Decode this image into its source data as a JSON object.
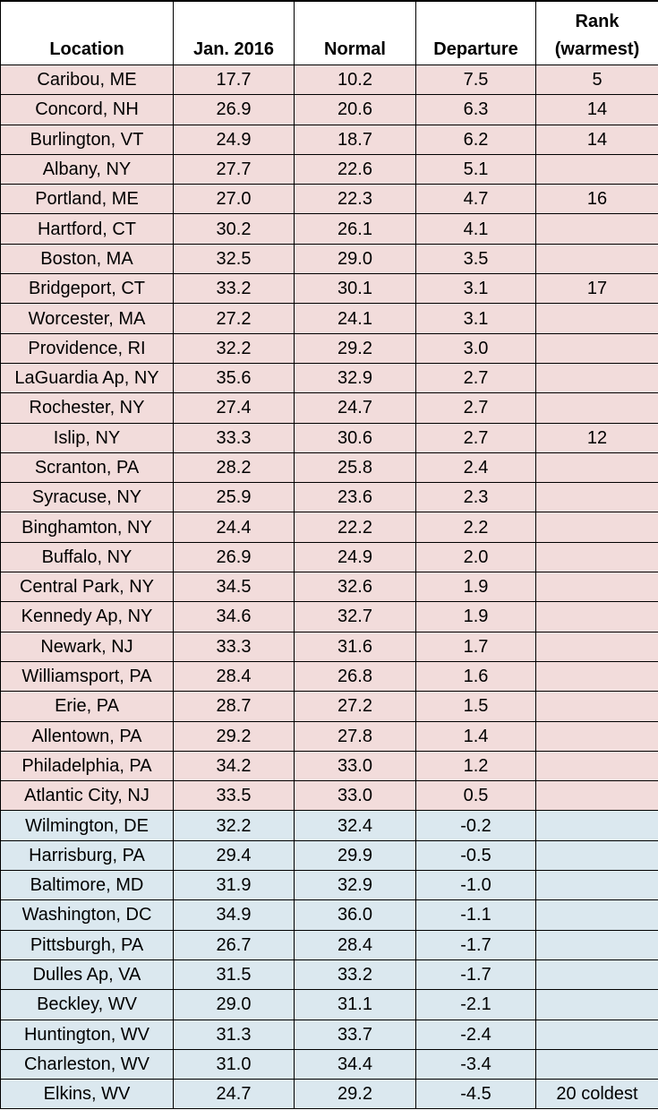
{
  "table": {
    "headers": {
      "location": "Location",
      "jan": "Jan. 2016",
      "normal": "Normal",
      "departure": "Departure",
      "rank_line1": "Rank",
      "rank_line2": "(warmest)"
    },
    "colors": {
      "positive_departure": "#f2dcdb",
      "negative_departure": "#dbe8ef"
    },
    "rows": [
      {
        "location": "Caribou, ME",
        "jan": "17.7",
        "normal": "10.2",
        "departure": "7.5",
        "rank": "5",
        "tone": "warm"
      },
      {
        "location": "Concord, NH",
        "jan": "26.9",
        "normal": "20.6",
        "departure": "6.3",
        "rank": "14",
        "tone": "warm"
      },
      {
        "location": "Burlington, VT",
        "jan": "24.9",
        "normal": "18.7",
        "departure": "6.2",
        "rank": "14",
        "tone": "warm"
      },
      {
        "location": "Albany, NY",
        "jan": "27.7",
        "normal": "22.6",
        "departure": "5.1",
        "rank": "",
        "tone": "warm"
      },
      {
        "location": "Portland, ME",
        "jan": "27.0",
        "normal": "22.3",
        "departure": "4.7",
        "rank": "16",
        "tone": "warm"
      },
      {
        "location": "Hartford, CT",
        "jan": "30.2",
        "normal": "26.1",
        "departure": "4.1",
        "rank": "",
        "tone": "warm"
      },
      {
        "location": "Boston, MA",
        "jan": "32.5",
        "normal": "29.0",
        "departure": "3.5",
        "rank": "",
        "tone": "warm"
      },
      {
        "location": "Bridgeport, CT",
        "jan": "33.2",
        "normal": "30.1",
        "departure": "3.1",
        "rank": "17",
        "tone": "warm"
      },
      {
        "location": "Worcester, MA",
        "jan": "27.2",
        "normal": "24.1",
        "departure": "3.1",
        "rank": "",
        "tone": "warm"
      },
      {
        "location": "Providence, RI",
        "jan": "32.2",
        "normal": "29.2",
        "departure": "3.0",
        "rank": "",
        "tone": "warm"
      },
      {
        "location": "LaGuardia Ap, NY",
        "jan": "35.6",
        "normal": "32.9",
        "departure": "2.7",
        "rank": "",
        "tone": "warm"
      },
      {
        "location": "Rochester, NY",
        "jan": "27.4",
        "normal": "24.7",
        "departure": "2.7",
        "rank": "",
        "tone": "warm"
      },
      {
        "location": "Islip, NY",
        "jan": "33.3",
        "normal": "30.6",
        "departure": "2.7",
        "rank": "12",
        "tone": "warm"
      },
      {
        "location": "Scranton, PA",
        "jan": "28.2",
        "normal": "25.8",
        "departure": "2.4",
        "rank": "",
        "tone": "warm"
      },
      {
        "location": "Syracuse, NY",
        "jan": "25.9",
        "normal": "23.6",
        "departure": "2.3",
        "rank": "",
        "tone": "warm"
      },
      {
        "location": "Binghamton, NY",
        "jan": "24.4",
        "normal": "22.2",
        "departure": "2.2",
        "rank": "",
        "tone": "warm"
      },
      {
        "location": "Buffalo, NY",
        "jan": "26.9",
        "normal": "24.9",
        "departure": "2.0",
        "rank": "",
        "tone": "warm"
      },
      {
        "location": "Central Park, NY",
        "jan": "34.5",
        "normal": "32.6",
        "departure": "1.9",
        "rank": "",
        "tone": "warm"
      },
      {
        "location": "Kennedy Ap, NY",
        "jan": "34.6",
        "normal": "32.7",
        "departure": "1.9",
        "rank": "",
        "tone": "warm"
      },
      {
        "location": "Newark, NJ",
        "jan": "33.3",
        "normal": "31.6",
        "departure": "1.7",
        "rank": "",
        "tone": "warm"
      },
      {
        "location": "Williamsport, PA",
        "jan": "28.4",
        "normal": "26.8",
        "departure": "1.6",
        "rank": "",
        "tone": "warm"
      },
      {
        "location": "Erie, PA",
        "jan": "28.7",
        "normal": "27.2",
        "departure": "1.5",
        "rank": "",
        "tone": "warm"
      },
      {
        "location": "Allentown, PA",
        "jan": "29.2",
        "normal": "27.8",
        "departure": "1.4",
        "rank": "",
        "tone": "warm"
      },
      {
        "location": "Philadelphia, PA",
        "jan": "34.2",
        "normal": "33.0",
        "departure": "1.2",
        "rank": "",
        "tone": "warm"
      },
      {
        "location": "Atlantic City, NJ",
        "jan": "33.5",
        "normal": "33.0",
        "departure": "0.5",
        "rank": "",
        "tone": "warm"
      },
      {
        "location": "Wilmington, DE",
        "jan": "32.2",
        "normal": "32.4",
        "departure": "-0.2",
        "rank": "",
        "tone": "cool"
      },
      {
        "location": "Harrisburg, PA",
        "jan": "29.4",
        "normal": "29.9",
        "departure": "-0.5",
        "rank": "",
        "tone": "cool"
      },
      {
        "location": "Baltimore, MD",
        "jan": "31.9",
        "normal": "32.9",
        "departure": "-1.0",
        "rank": "",
        "tone": "cool"
      },
      {
        "location": "Washington, DC",
        "jan": "34.9",
        "normal": "36.0",
        "departure": "-1.1",
        "rank": "",
        "tone": "cool"
      },
      {
        "location": "Pittsburgh, PA",
        "jan": "26.7",
        "normal": "28.4",
        "departure": "-1.7",
        "rank": "",
        "tone": "cool"
      },
      {
        "location": "Dulles Ap, VA",
        "jan": "31.5",
        "normal": "33.2",
        "departure": "-1.7",
        "rank": "",
        "tone": "cool"
      },
      {
        "location": "Beckley, WV",
        "jan": "29.0",
        "normal": "31.1",
        "departure": "-2.1",
        "rank": "",
        "tone": "cool"
      },
      {
        "location": "Huntington, WV",
        "jan": "31.3",
        "normal": "33.7",
        "departure": "-2.4",
        "rank": "",
        "tone": "cool"
      },
      {
        "location": "Charleston, WV",
        "jan": "31.0",
        "normal": "34.4",
        "departure": "-3.4",
        "rank": "",
        "tone": "cool"
      },
      {
        "location": "Elkins, WV",
        "jan": "24.7",
        "normal": "29.2",
        "departure": "-4.5",
        "rank": "20 coldest",
        "tone": "cool"
      }
    ]
  }
}
